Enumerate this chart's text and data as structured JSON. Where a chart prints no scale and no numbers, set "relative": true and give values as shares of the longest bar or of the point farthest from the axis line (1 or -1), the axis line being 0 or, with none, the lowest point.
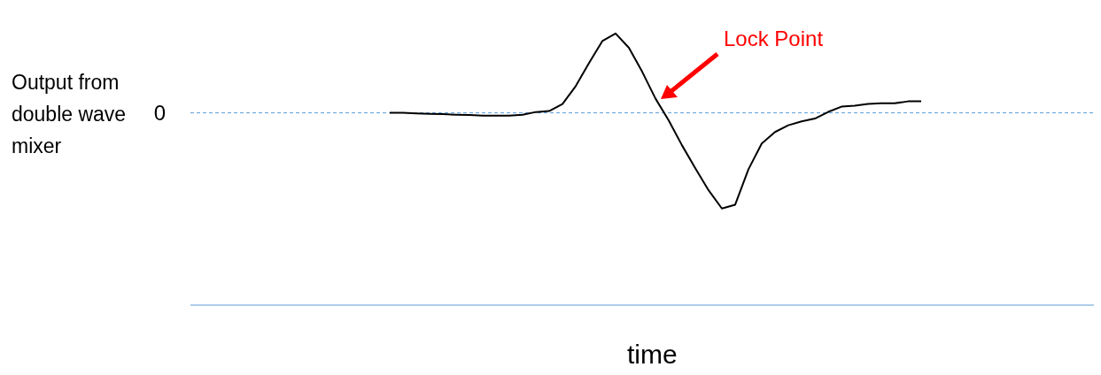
{
  "chart_data": {
    "type": "line",
    "relative": true,
    "xlabel": "time",
    "ylabel": "Output from double wave mixer",
    "categories": [
      null,
      null,
      null,
      null,
      null,
      null,
      null,
      null,
      null,
      null,
      null,
      null,
      null,
      null,
      null,
      null,
      null,
      null,
      null,
      null,
      null,
      null,
      null,
      null,
      null,
      null,
      null,
      null,
      null,
      null,
      null,
      null,
      null,
      null,
      null,
      null,
      null,
      null,
      null,
      null,
      null,
      null,
      null,
      null,
      null,
      null,
      null,
      null,
      null,
      null,
      null,
      null,
      null,
      null,
      null,
      null,
      null,
      null,
      null,
      null,
      null,
      null,
      null,
      null,
      null,
      null,
      null,
      null,
      null
    ],
    "series": [
      {
        "color": "#000000",
        "values": [
          null,
          null,
          null,
          null,
          null,
          null,
          null,
          null,
          null,
          null,
          null,
          null,
          null,
          null,
          null,
          0,
          0,
          -0.005,
          -0.01,
          -0.014,
          -0.019,
          -0.023,
          -0.028,
          -0.028,
          -0.028,
          -0.019,
          0.009,
          0.019,
          0.093,
          0.28,
          0.52,
          0.75,
          0.83,
          0.68,
          0.43,
          0.15,
          -0.08,
          -0.34,
          -0.58,
          -0.81,
          -1,
          -0.96,
          -0.59,
          -0.32,
          -0.2,
          -0.13,
          -0.09,
          -0.06,
          0.01,
          0.065,
          0.074,
          0.093,
          0.1,
          0.1,
          0.12,
          0.12,
          null,
          null,
          null,
          null,
          null,
          null,
          null,
          null,
          null,
          null,
          null,
          null,
          null
        ]
      }
    ],
    "ref_lines": [
      {
        "axis": "y",
        "value": 0,
        "label": "0",
        "color": "#5b9bd5",
        "line_style": "dashed"
      }
    ],
    "annotations": [
      "Lock Point"
    ],
    "marker": "none",
    "line_style": "solid",
    "grid": false,
    "legend": false
  }
}
